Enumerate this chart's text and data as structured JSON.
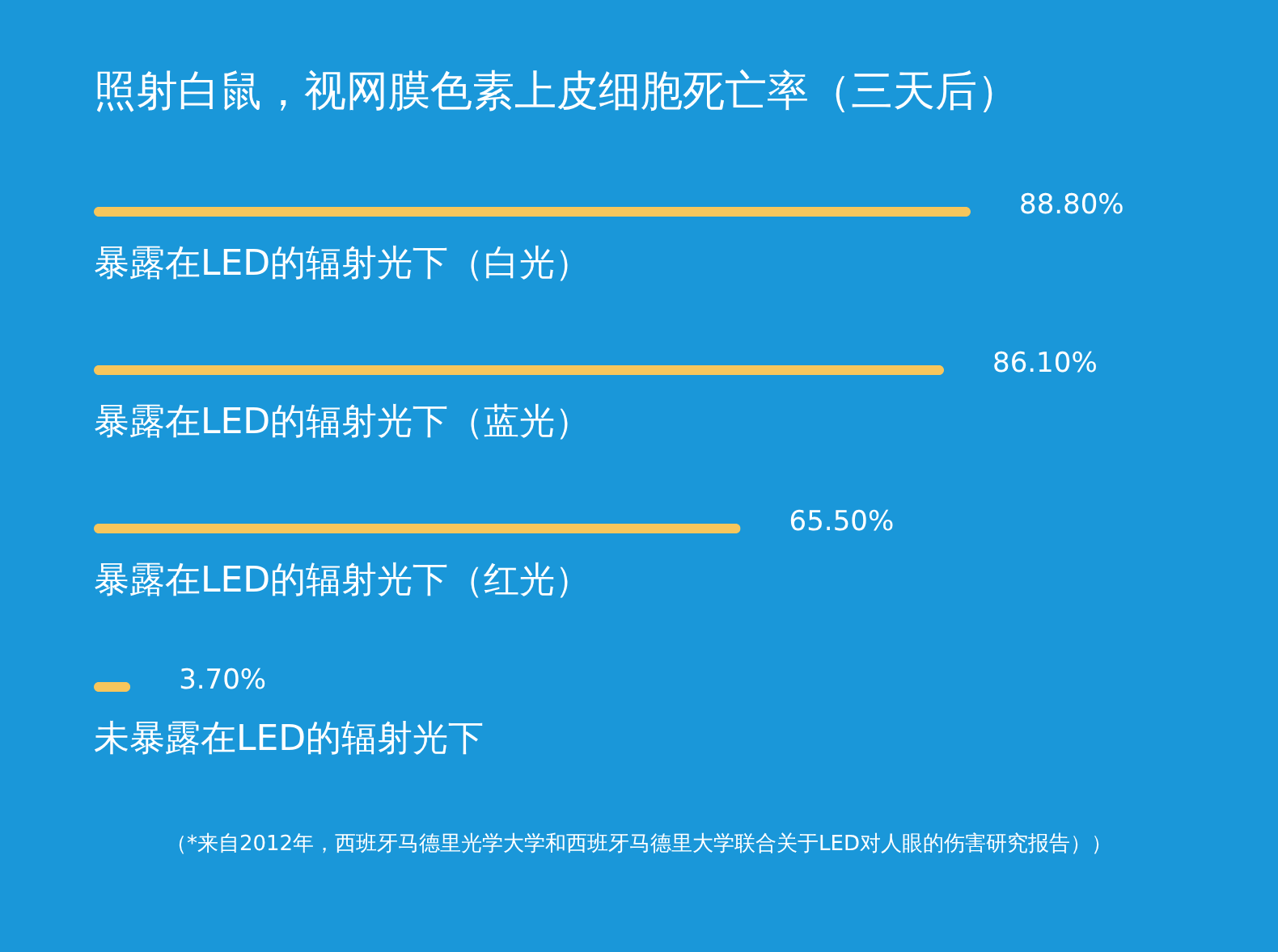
{
  "chart_data": {
    "type": "bar",
    "orientation": "horizontal",
    "title": "照射白鼠，视网膜色素上皮细胞死亡率（三天后）",
    "categories": [
      "暴露在LED的辐射光下（白光）",
      "暴露在LED的辐射光下（蓝光）",
      "暴露在LED的辐射光下（红光）",
      "未暴露在LED的辐射光下"
    ],
    "values": [
      88.8,
      86.1,
      65.5,
      3.7
    ],
    "value_labels": [
      "88.80%",
      "86.10%",
      "65.50%",
      "3.70%"
    ],
    "color": "#f7c65c",
    "annotations": [
      "（*来自2012年，西班牙马德里光学大学和西班牙马德里大学联合关于LED对人眼的伤害研究报告））"
    ]
  }
}
